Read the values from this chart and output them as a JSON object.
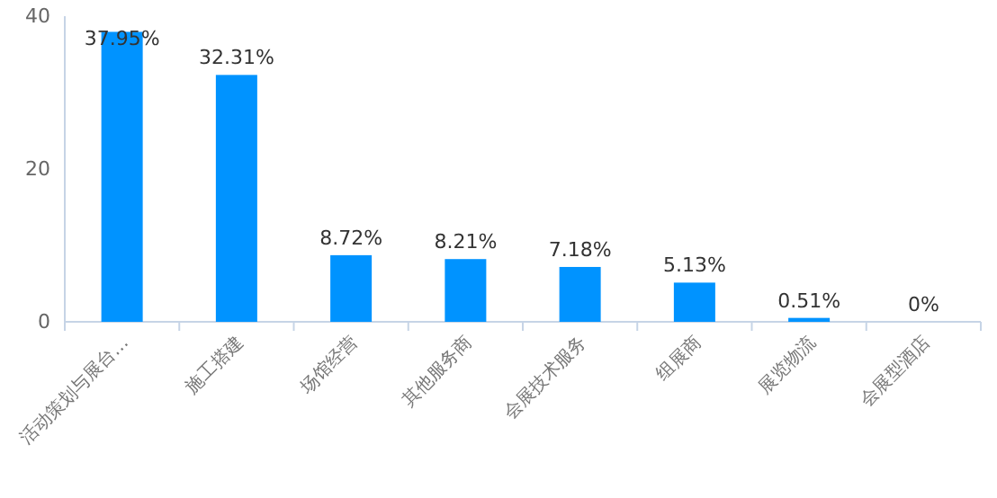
{
  "chart_data": {
    "type": "bar",
    "categories": [
      "活动策划与展台…",
      "施工搭建",
      "场馆经营",
      "其他服务商",
      "会展技术服务",
      "组展商",
      "展览物流",
      "会展型酒店"
    ],
    "values": [
      37.95,
      32.31,
      8.72,
      8.21,
      7.18,
      5.13,
      0.51,
      0
    ],
    "value_labels": [
      "37.95%",
      "32.31%",
      "8.72%",
      "8.21%",
      "7.18%",
      "5.13%",
      "0.51%",
      "0%"
    ],
    "color": "#0093ff",
    "ylim": [
      0,
      40
    ],
    "yticks": [
      0,
      20,
      40
    ],
    "grid": false
  }
}
